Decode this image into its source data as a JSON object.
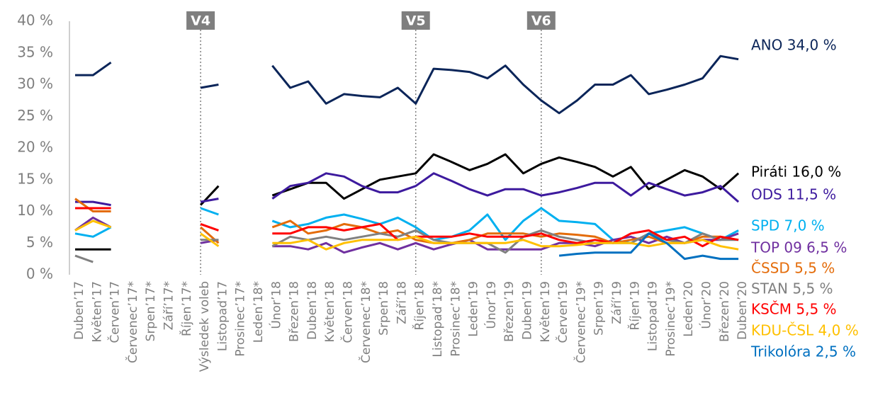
{
  "chart_data": {
    "type": "line",
    "categories": [
      "Duben’17",
      "Květen’17",
      "Červen’17",
      "Červenec’17*",
      "Srpen’17*",
      "Září’17*",
      "Říjen’17*",
      "Výsledek voleb",
      "Listopad’17",
      "Prosinec’17*",
      "Leden’18*",
      "Únor’18",
      "Březen’18",
      "Duben’18",
      "Květen’18",
      "Červen’18",
      "Červenec’18*",
      "Srpen’18",
      "Září’18",
      "Říjen’18",
      "Listopad’18*",
      "Prosinec’18*",
      "Leden’19",
      "Únor’19",
      "Březen’19",
      "Duben’19",
      "Květen’19",
      "Červen’19",
      "Červenec’19*",
      "Srpen’19",
      "Září’19",
      "Říjen’19",
      "Listopad’19",
      "Prosinec’19*",
      "Leden’20",
      "Únor’20",
      "Březen’20",
      "Duben’20"
    ],
    "ylim": [
      0,
      40
    ],
    "yticks": [
      {
        "value": 0,
        "label": "0 %"
      },
      {
        "value": 5,
        "label": "5 %"
      },
      {
        "value": 10,
        "label": "10 %"
      },
      {
        "value": 15,
        "label": "15 %"
      },
      {
        "value": 20,
        "label": "20 %"
      },
      {
        "value": 25,
        "label": "25 %"
      },
      {
        "value": 30,
        "label": "30 %"
      },
      {
        "value": 35,
        "label": "35 %"
      },
      {
        "value": 40,
        "label": "40 %"
      }
    ],
    "annotations": [
      {
        "label": "V4",
        "x": "Výsledek voleb"
      },
      {
        "label": "V5",
        "x": "Říjen’18"
      },
      {
        "label": "V6",
        "x": "Květen’19"
      }
    ],
    "series": [
      {
        "name": "ANO 34,0 %",
        "color": "#0b2559",
        "values": [
          31.5,
          31.5,
          33.5,
          null,
          null,
          null,
          null,
          29.5,
          30,
          null,
          null,
          33,
          29.5,
          30.5,
          27,
          28.5,
          28.2,
          28,
          29.5,
          27,
          32.5,
          32.3,
          32,
          31,
          33,
          30,
          27.5,
          25.5,
          27.5,
          30,
          30,
          31.5,
          28.5,
          29.2,
          30,
          31,
          34.5,
          34
        ]
      },
      {
        "name": "Piráti 16,0 %",
        "color": "#000000",
        "values": [
          4,
          4,
          4,
          null,
          null,
          null,
          null,
          11,
          14,
          null,
          null,
          12.5,
          13.5,
          14.5,
          14.5,
          12,
          13.5,
          15,
          15.5,
          16,
          19,
          17.8,
          16.5,
          17.5,
          19,
          16,
          17.5,
          18.5,
          17.8,
          17,
          15.5,
          17,
          13.5,
          15,
          16.5,
          15.5,
          13.5,
          16
        ]
      },
      {
        "name": "ODS 11,5 %",
        "color": "#3d1a9e",
        "values": [
          11.5,
          11.5,
          11,
          null,
          null,
          null,
          null,
          11.5,
          12,
          null,
          null,
          12,
          14,
          14.5,
          16,
          15.5,
          14,
          13,
          13,
          14,
          16,
          14.8,
          13.5,
          12.5,
          13.5,
          13.5,
          12.5,
          13,
          13.7,
          14.5,
          14.5,
          12.5,
          14.5,
          13.5,
          12.5,
          13,
          14,
          11.5
        ]
      },
      {
        "name": "SPD 7,0 %",
        "color": "#00b0f0",
        "values": [
          6.5,
          6,
          7.5,
          null,
          null,
          null,
          null,
          10.5,
          9.5,
          null,
          null,
          8.5,
          7.5,
          8,
          9,
          9.5,
          8.8,
          8,
          9,
          7.5,
          5.5,
          6,
          7,
          9.5,
          5.5,
          8.5,
          10.5,
          8.5,
          8.3,
          8,
          5.5,
          5,
          6.5,
          7,
          7.5,
          6.5,
          5.5,
          7
        ]
      },
      {
        "name": "TOP 09 6,5 %",
        "color": "#7030a0",
        "values": [
          7,
          9,
          7.5,
          null,
          null,
          null,
          null,
          5,
          5.5,
          null,
          null,
          4.5,
          4.5,
          4,
          5,
          3.5,
          4.3,
          5,
          4,
          5,
          4,
          4.8,
          5.5,
          4,
          4,
          4,
          4,
          5,
          5,
          4.5,
          5.5,
          6,
          5,
          6,
          5,
          5.5,
          5.5,
          6.5
        ]
      },
      {
        "name": "ČSSD 5,5 %",
        "color": "#e46c0a",
        "values": [
          12,
          10,
          10,
          null,
          null,
          null,
          null,
          7.5,
          5,
          null,
          null,
          7.5,
          8.5,
          6.5,
          7,
          8,
          7.5,
          6.5,
          7,
          5.5,
          5,
          5,
          5.5,
          6.5,
          6.5,
          6.5,
          6,
          6.5,
          6.3,
          6,
          5,
          5.5,
          6,
          5,
          5,
          6,
          6,
          5.5
        ]
      },
      {
        "name": "STAN 5,5 %",
        "color": "#808080",
        "values": [
          3,
          2,
          null,
          null,
          null,
          null,
          null,
          5.5,
          5.5,
          null,
          null,
          4.5,
          6,
          5.5,
          6,
          5.5,
          6,
          6.5,
          6,
          7,
          5.5,
          5,
          5,
          5,
          3.5,
          6,
          7,
          6,
          5.5,
          5,
          5,
          5,
          6.5,
          5.5,
          5,
          6.5,
          5.5,
          5.5
        ]
      },
      {
        "name": "KSČM 5,5 %",
        "color": "#ff0000",
        "values": [
          10.5,
          10.5,
          10.5,
          null,
          null,
          null,
          null,
          8,
          7,
          null,
          null,
          6.5,
          6.5,
          7.5,
          7.5,
          7,
          7.5,
          8,
          5.5,
          6,
          6,
          6,
          6.5,
          6,
          6,
          6,
          6.5,
          5.5,
          5,
          5.5,
          5,
          6.5,
          7,
          5.5,
          6,
          4.5,
          6,
          5.5
        ]
      },
      {
        "name": "KDU-ČSL 4,0 %",
        "color": "#ffc000",
        "values": [
          7,
          8.5,
          7.5,
          null,
          null,
          null,
          null,
          6.5,
          4.5,
          null,
          null,
          5,
          5,
          5.5,
          4,
          5,
          5.5,
          5.5,
          5.5,
          6,
          5,
          5,
          5,
          5,
          5,
          5.5,
          4.5,
          4.5,
          4.7,
          5,
          5,
          5,
          4.5,
          5,
          5,
          5.5,
          4.5,
          4
        ]
      },
      {
        "name": "Trikolóra 2,5 %",
        "color": "#0070c0",
        "values": [
          null,
          null,
          null,
          null,
          null,
          null,
          null,
          null,
          null,
          null,
          null,
          null,
          null,
          null,
          null,
          null,
          null,
          null,
          null,
          null,
          null,
          null,
          null,
          null,
          null,
          null,
          null,
          3,
          3.3,
          3.5,
          3.5,
          3.5,
          6.5,
          5,
          2.5,
          3,
          2.5,
          2.5
        ]
      }
    ]
  }
}
